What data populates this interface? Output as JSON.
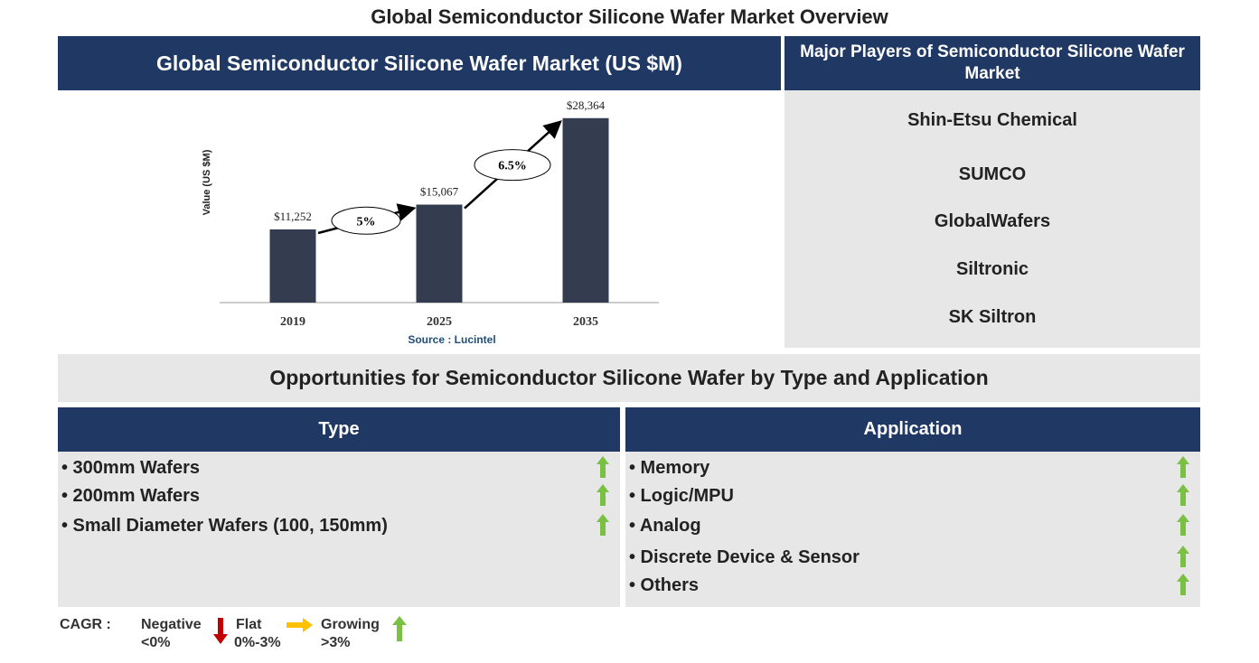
{
  "title": "Global Semiconductor Silicone Wafer Market Overview",
  "market_panel": {
    "header": "Global Semiconductor Silicone Wafer Market (US $M)"
  },
  "chart_data": {
    "type": "bar",
    "y_label": "Value (US $M)",
    "categories": [
      "2019",
      "2025",
      "2035"
    ],
    "values": [
      11252,
      15067,
      28364
    ],
    "value_labels": [
      "$11,252",
      "$15,067",
      "$28,364"
    ],
    "color": "#333d4f",
    "ylim": [
      0,
      30000
    ],
    "growth_labels": [
      "5%",
      "6.5%"
    ],
    "source": "Source : Lucintel"
  },
  "players": {
    "header": "Major Players of Semiconductor Silicone Wafer Market",
    "items": [
      "Shin-Etsu Chemical",
      "SUMCO",
      "GlobalWafers",
      "Siltronic",
      "SK Siltron"
    ]
  },
  "opportunities": {
    "title": "Opportunities for Semiconductor Silicone Wafer by Type and Application",
    "type": {
      "header": "Type",
      "items": [
        "• 300mm Wafers",
        "• 200mm Wafers",
        "• Small Diameter Wafers (100, 150mm)"
      ]
    },
    "application": {
      "header": "Application",
      "items": [
        "• Memory",
        "• Logic/MPU",
        "• Analog",
        "• Discrete Device & Sensor",
        "• Others"
      ]
    }
  },
  "cagr_legend": {
    "label": "CAGR :",
    "negative": {
      "name": "Negative",
      "range": "<0%"
    },
    "flat": {
      "name": "Flat",
      "range": "0%-3%"
    },
    "growing": {
      "name": "Growing",
      "range": ">3%"
    }
  }
}
